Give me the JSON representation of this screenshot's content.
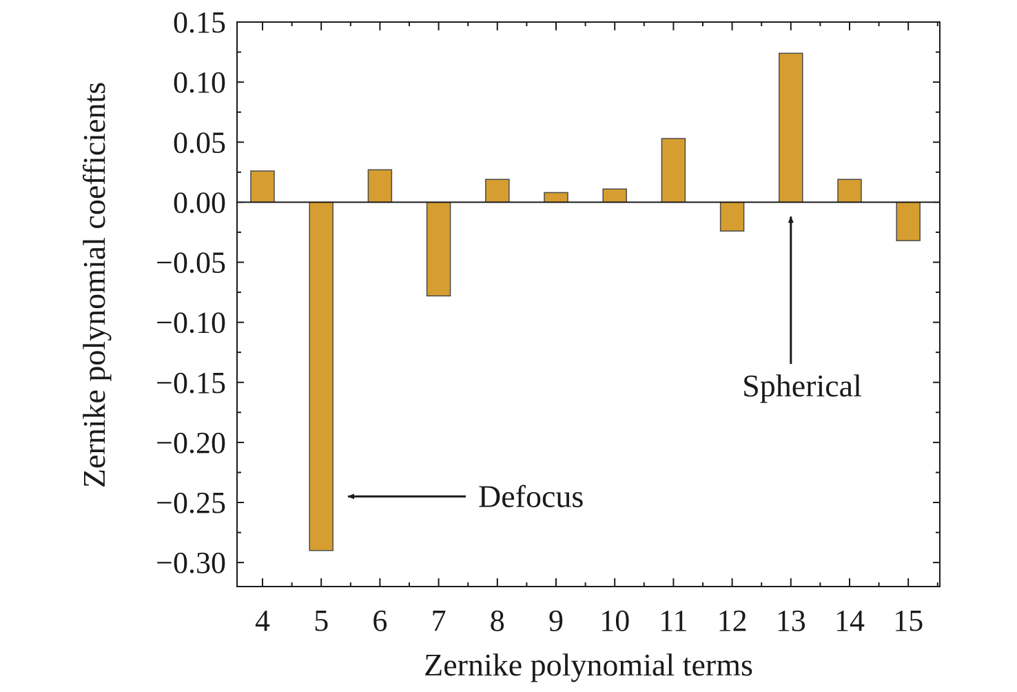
{
  "chart_data": {
    "type": "bar",
    "title": "",
    "xlabel": "Zernike polynomial terms",
    "ylabel": "Zernike polynomial coefficients",
    "categories": [
      "4",
      "5",
      "6",
      "7",
      "8",
      "9",
      "10",
      "11",
      "12",
      "13",
      "14",
      "15"
    ],
    "values": [
      0.026,
      -0.29,
      0.027,
      -0.078,
      0.019,
      0.008,
      0.011,
      0.053,
      -0.024,
      0.124,
      0.019,
      -0.032
    ],
    "ylim": [
      -0.32,
      0.15
    ],
    "yticks": [
      0.15,
      0.1,
      0.05,
      0.0,
      -0.05,
      -0.1,
      -0.15,
      -0.2,
      -0.25,
      -0.3
    ],
    "ytick_labels": [
      "0.15",
      "0.10",
      "0.05",
      "0.00",
      "−0.05",
      "−0.10",
      "−0.15",
      "−0.20",
      "−0.25",
      "−0.30"
    ],
    "grid": false,
    "legend": "none",
    "bar_color": "#d69e30",
    "annotations": [
      {
        "text": "Defocus",
        "category": "5",
        "arrow": "horizontal",
        "value": -0.245
      },
      {
        "text": "Spherical",
        "category": "13",
        "arrow": "vertical",
        "value": -0.012
      }
    ]
  }
}
